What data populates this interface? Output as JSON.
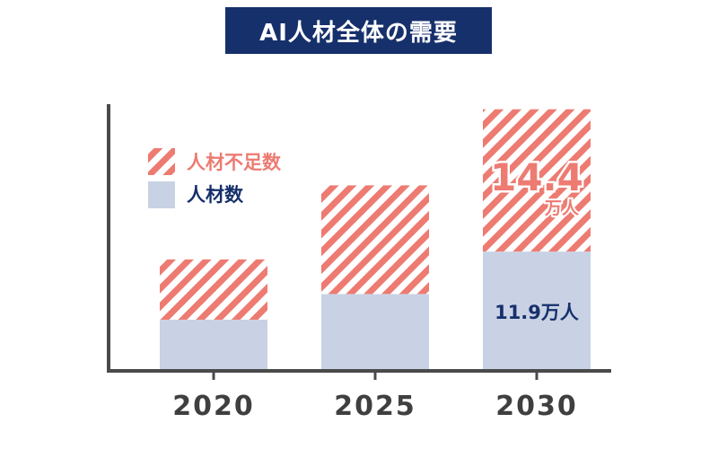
{
  "chart_data": {
    "type": "bar",
    "stacked": true,
    "title": "AI人材全体の需要",
    "categories": [
      "2020",
      "2025",
      "2030"
    ],
    "series": [
      {
        "name": "人材数",
        "values": [
          5.0,
          7.6,
          11.9
        ],
        "color": "#c9d2e4"
      },
      {
        "name": "人材不足数",
        "values": [
          6.1,
          11.0,
          14.4
        ],
        "color": "#ed7b72",
        "pattern": "diagonal-stripes"
      }
    ],
    "annotations": {
      "shortage_2030_value": "14.4",
      "shortage_2030_unit": "万人",
      "workforce_2030_label": "11.9万人"
    },
    "legend": "top-left",
    "axis_color": "#4a4a4a",
    "label_colors": {
      "title_bg": "#16306b",
      "shortage": "#ed7b72",
      "workforce": "#16306b"
    }
  }
}
